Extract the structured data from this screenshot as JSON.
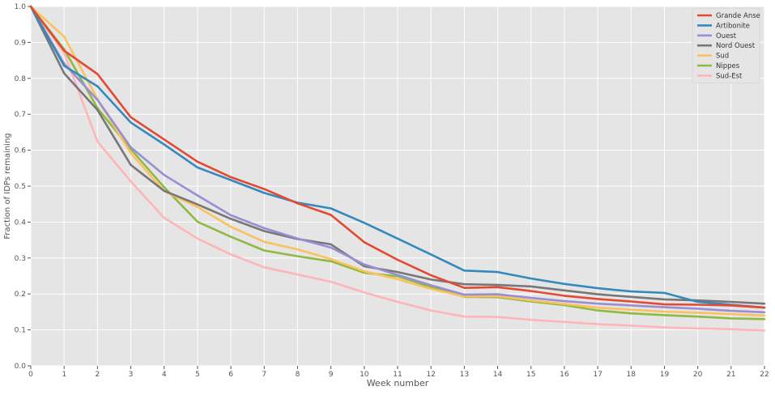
{
  "chart_data": {
    "type": "line",
    "title": "",
    "xlabel": "Week number",
    "ylabel": "Fraction of IDPs remaining",
    "xlim": [
      0,
      22
    ],
    "ylim": [
      0.0,
      1.0
    ],
    "xticks": [
      "0",
      "1",
      "2",
      "3",
      "4",
      "5",
      "6",
      "7",
      "8",
      "9",
      "10",
      "11",
      "12",
      "13",
      "14",
      "15",
      "16",
      "17",
      "18",
      "19",
      "20",
      "21",
      "22"
    ],
    "yticks": [
      "0.0",
      "0.1",
      "0.2",
      "0.3",
      "0.4",
      "0.5",
      "0.6",
      "0.7",
      "0.8",
      "0.9",
      "1.0"
    ],
    "grid": true,
    "legend_position": "top-right",
    "x": [
      0,
      1,
      2,
      3,
      4,
      5,
      6,
      7,
      8,
      9,
      10,
      11,
      12,
      13,
      14,
      15,
      16,
      17,
      18,
      19,
      20,
      21,
      22
    ],
    "series": [
      {
        "name": "Grande Anse",
        "color": "#e24a33",
        "values": [
          1.0,
          0.877,
          0.812,
          0.692,
          0.63,
          0.568,
          0.525,
          0.492,
          0.452,
          0.42,
          0.344,
          0.295,
          0.252,
          0.217,
          0.219,
          0.208,
          0.195,
          0.186,
          0.179,
          0.171,
          0.17,
          0.168,
          0.162
        ]
      },
      {
        "name": "Artibonite",
        "color": "#348abd",
        "values": [
          1.0,
          0.835,
          0.778,
          0.677,
          0.616,
          0.552,
          0.517,
          0.481,
          0.454,
          0.438,
          0.398,
          0.354,
          0.31,
          0.265,
          0.261,
          0.243,
          0.228,
          0.216,
          0.207,
          0.203,
          0.178,
          0.17,
          0.162
        ]
      },
      {
        "name": "Ouest",
        "color": "#988ed5",
        "values": [
          1.0,
          0.841,
          0.74,
          0.608,
          0.531,
          0.474,
          0.419,
          0.383,
          0.354,
          0.329,
          0.282,
          0.253,
          0.224,
          0.198,
          0.199,
          0.189,
          0.18,
          0.173,
          0.168,
          0.163,
          0.159,
          0.153,
          0.149
        ]
      },
      {
        "name": "Nord Ouest",
        "color": "#777777",
        "values": [
          1.0,
          0.814,
          0.712,
          0.559,
          0.487,
          0.449,
          0.409,
          0.375,
          0.353,
          0.338,
          0.277,
          0.261,
          0.24,
          0.227,
          0.225,
          0.221,
          0.21,
          0.199,
          0.192,
          0.185,
          0.182,
          0.178,
          0.173
        ]
      },
      {
        "name": "Sud",
        "color": "#fbc15e",
        "values": [
          1.0,
          0.916,
          0.742,
          0.592,
          0.486,
          0.442,
          0.387,
          0.345,
          0.324,
          0.297,
          0.263,
          0.241,
          0.214,
          0.193,
          0.194,
          0.182,
          0.172,
          0.162,
          0.156,
          0.151,
          0.148,
          0.144,
          0.14
        ]
      },
      {
        "name": "Nippes",
        "color": "#8eba42",
        "values": [
          1.0,
          0.881,
          0.717,
          0.603,
          0.497,
          0.401,
          0.359,
          0.321,
          0.305,
          0.291,
          0.259,
          0.249,
          0.219,
          0.192,
          0.191,
          0.179,
          0.169,
          0.154,
          0.146,
          0.141,
          0.137,
          0.132,
          0.13
        ]
      },
      {
        "name": "Sud-Est",
        "color": "#ffb5b8",
        "values": [
          1.0,
          0.871,
          0.624,
          0.513,
          0.412,
          0.354,
          0.31,
          0.274,
          0.254,
          0.234,
          0.204,
          0.178,
          0.154,
          0.137,
          0.136,
          0.128,
          0.122,
          0.116,
          0.112,
          0.107,
          0.104,
          0.102,
          0.098
        ]
      }
    ]
  },
  "style": {
    "axes_background": "#e5e5e5",
    "grid_color": "#ffffff",
    "text_color": "#555555"
  }
}
